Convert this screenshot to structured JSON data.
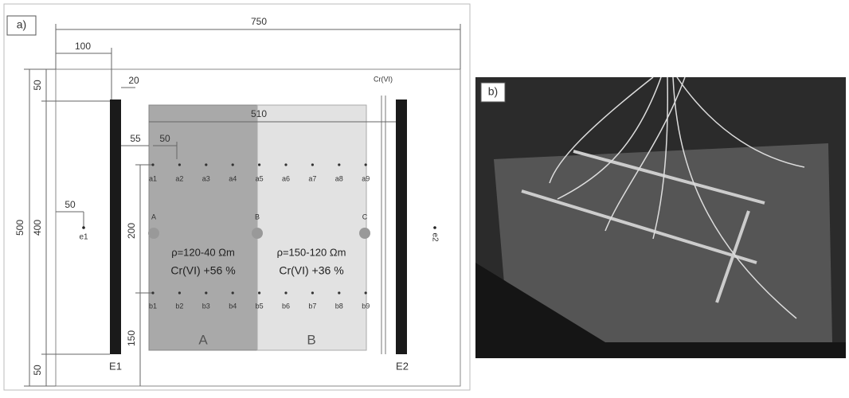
{
  "panel_a": {
    "label": "a)",
    "dimensions": {
      "total_width": "750",
      "left_offset": "100",
      "total_height": "500",
      "top_margin": "50",
      "inner_height": "400",
      "bottom_margin": "50",
      "electrode_width": "20",
      "zone_length": "510",
      "first_offset": "55",
      "spacing": "50",
      "row_distance": "200",
      "bottom_distance": "150",
      "e1_offset": "50"
    },
    "electrodes": {
      "left": "E1",
      "right": "E2"
    },
    "cr_label": "Cr(VI)",
    "top_row": [
      "a1",
      "a2",
      "a3",
      "a4",
      "a5",
      "a6",
      "a7",
      "a8",
      "a9"
    ],
    "bottom_row": [
      "b1",
      "b2",
      "b3",
      "b4",
      "b5",
      "b6",
      "b7",
      "b8",
      "b9"
    ],
    "points": [
      "A",
      "B",
      "C"
    ],
    "external": [
      "e1",
      "e2"
    ],
    "zones": [
      {
        "name": "A",
        "resistivity": "ρ=120-40 Ωm",
        "chromium": "Cr(VI) +56 %"
      },
      {
        "name": "B",
        "resistivity": "ρ=150-120 Ωm",
        "chromium": "Cr(VI) +36 %"
      }
    ]
  },
  "panel_b": {
    "label": "b)"
  }
}
